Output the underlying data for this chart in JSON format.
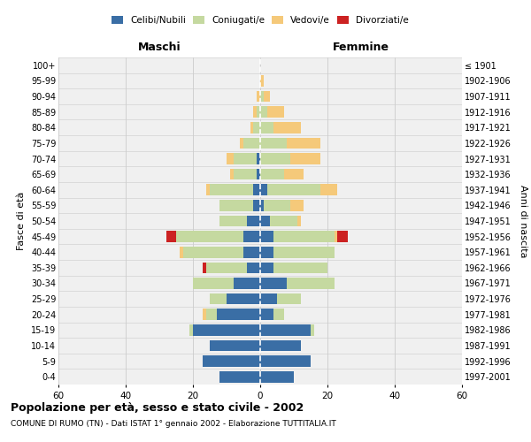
{
  "age_groups": [
    "0-4",
    "5-9",
    "10-14",
    "15-19",
    "20-24",
    "25-29",
    "30-34",
    "35-39",
    "40-44",
    "45-49",
    "50-54",
    "55-59",
    "60-64",
    "65-69",
    "70-74",
    "75-79",
    "80-84",
    "85-89",
    "90-94",
    "95-99",
    "100+"
  ],
  "birth_years": [
    "1997-2001",
    "1992-1996",
    "1987-1991",
    "1982-1986",
    "1977-1981",
    "1972-1976",
    "1967-1971",
    "1962-1966",
    "1957-1961",
    "1952-1956",
    "1947-1951",
    "1942-1946",
    "1937-1941",
    "1932-1936",
    "1927-1931",
    "1922-1926",
    "1917-1921",
    "1912-1916",
    "1907-1911",
    "1902-1906",
    "≤ 1901"
  ],
  "male_celibi": [
    12,
    17,
    15,
    20,
    13,
    10,
    8,
    4,
    5,
    5,
    4,
    2,
    2,
    1,
    1,
    0,
    0,
    0,
    0,
    0,
    0
  ],
  "male_coniugati": [
    0,
    0,
    0,
    1,
    3,
    5,
    12,
    12,
    18,
    20,
    8,
    10,
    13,
    7,
    7,
    5,
    2,
    1,
    0,
    0,
    0
  ],
  "male_vedovi": [
    0,
    0,
    0,
    0,
    1,
    0,
    0,
    0,
    1,
    0,
    0,
    0,
    1,
    1,
    2,
    1,
    1,
    1,
    1,
    0,
    0
  ],
  "male_divorziati": [
    0,
    0,
    0,
    0,
    0,
    0,
    0,
    1,
    0,
    3,
    0,
    0,
    0,
    0,
    0,
    0,
    0,
    0,
    0,
    0,
    0
  ],
  "female_celibi": [
    10,
    15,
    12,
    15,
    4,
    5,
    8,
    4,
    4,
    4,
    3,
    1,
    2,
    0,
    0,
    0,
    0,
    0,
    0,
    0,
    0
  ],
  "female_coniugati": [
    0,
    0,
    0,
    1,
    3,
    7,
    14,
    16,
    18,
    18,
    8,
    8,
    16,
    7,
    9,
    8,
    4,
    2,
    1,
    0,
    0
  ],
  "female_vedovi": [
    0,
    0,
    0,
    0,
    0,
    0,
    0,
    0,
    0,
    1,
    1,
    4,
    5,
    6,
    9,
    10,
    8,
    5,
    2,
    1,
    0
  ],
  "female_divorziati": [
    0,
    0,
    0,
    0,
    0,
    0,
    0,
    0,
    0,
    3,
    0,
    0,
    0,
    0,
    0,
    0,
    0,
    0,
    0,
    0,
    0
  ],
  "color_celibi": "#3a6ea5",
  "color_coniugati": "#c5d9a0",
  "color_vedovi": "#f5c97a",
  "color_divorziati": "#cc2222",
  "title": "Popolazione per età, sesso e stato civile - 2002",
  "subtitle": "COMUNE DI RUMO (TN) - Dati ISTAT 1° gennaio 2002 - Elaborazione TUTTITALIA.IT",
  "xlabel_left": "Maschi",
  "xlabel_right": "Femmine",
  "ylabel_left": "Fasce di età",
  "ylabel_right": "Anni di nascita",
  "xlim": 60,
  "background_color": "#f0f0f0",
  "grid_color": "#cccccc"
}
